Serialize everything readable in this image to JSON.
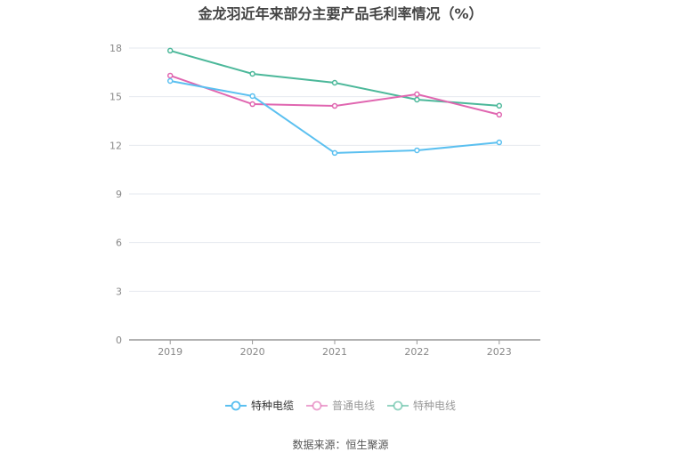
{
  "chart_data": {
    "type": "line",
    "title": "金龙羽近年来部分主要产品毛利率情况（%）",
    "xlabel": "",
    "ylabel": "",
    "categories": [
      "2019",
      "2020",
      "2021",
      "2022",
      "2023"
    ],
    "ylim": [
      0,
      18
    ],
    "yticks": [
      0,
      3,
      6,
      9,
      12,
      15,
      18
    ],
    "grid": true,
    "legend_position": "bottom",
    "series": [
      {
        "name": "特种电缆",
        "color": "#5bc0f0",
        "values": [
          15.97,
          15.04,
          11.53,
          11.69,
          12.18
        ]
      },
      {
        "name": "普通电线",
        "color": "#e066b0",
        "values": [
          16.3,
          14.54,
          14.43,
          15.15,
          13.89
        ]
      },
      {
        "name": "特种电线",
        "color": "#4cb89a",
        "values": [
          17.84,
          16.41,
          15.86,
          14.82,
          14.44
        ]
      }
    ]
  },
  "source": "数据来源：恒生聚源"
}
